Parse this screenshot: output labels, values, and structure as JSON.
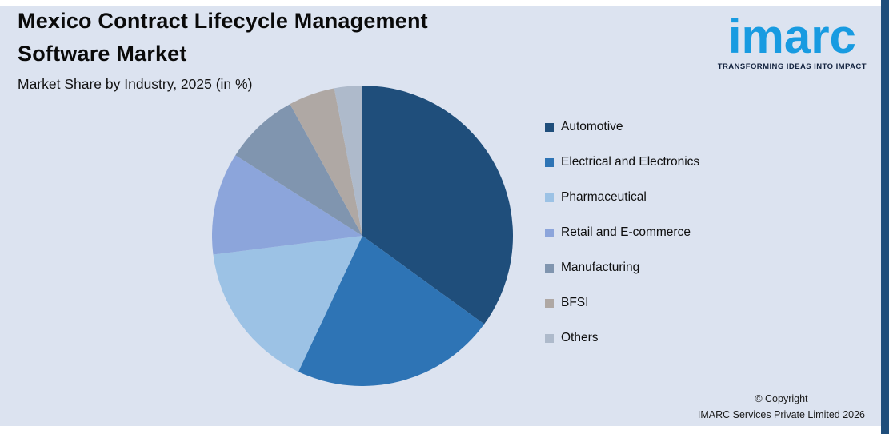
{
  "header": {
    "title_line1": "Mexico Contract Lifecycle Management",
    "title_line2": "Software Market",
    "subtitle": "Market Share by Industry, 2025 (in %)"
  },
  "logo": {
    "text": "imarc",
    "tagline": "TRANSFORMING IDEAS INTO IMPACT",
    "brand_color": "#189BE1"
  },
  "chart_data": {
    "type": "pie",
    "title": "Mexico Contract Lifecycle Management Software Market",
    "subtitle": "Market Share by Industry, 2025 (in %)",
    "values_unit": "%",
    "start_angle_deg": 0,
    "direction": "clockwise",
    "legend_position": "right",
    "slices": [
      {
        "label": "Automotive",
        "value": 35,
        "color": "#1F4E7B"
      },
      {
        "label": "Electrical and Electronics",
        "value": 22,
        "color": "#2E74B5"
      },
      {
        "label": "Pharmaceutical",
        "value": 16,
        "color": "#9CC2E5"
      },
      {
        "label": "Retail and E-commerce",
        "value": 11,
        "color": "#8CA5DB"
      },
      {
        "label": "Manufacturing",
        "value": 8,
        "color": "#8095AF"
      },
      {
        "label": "BFSI",
        "value": 5,
        "color": "#AFA8A4"
      },
      {
        "label": "Others",
        "value": 3,
        "color": "#AEBACB"
      }
    ]
  },
  "footer": {
    "copyright_line1": "© Copyright",
    "copyright_line2": "IMARC Services Private Limited 2026"
  },
  "colors": {
    "background": "#DCE3F0",
    "card_border": "#FFFFFF",
    "right_bar": "#1F4E7B"
  }
}
